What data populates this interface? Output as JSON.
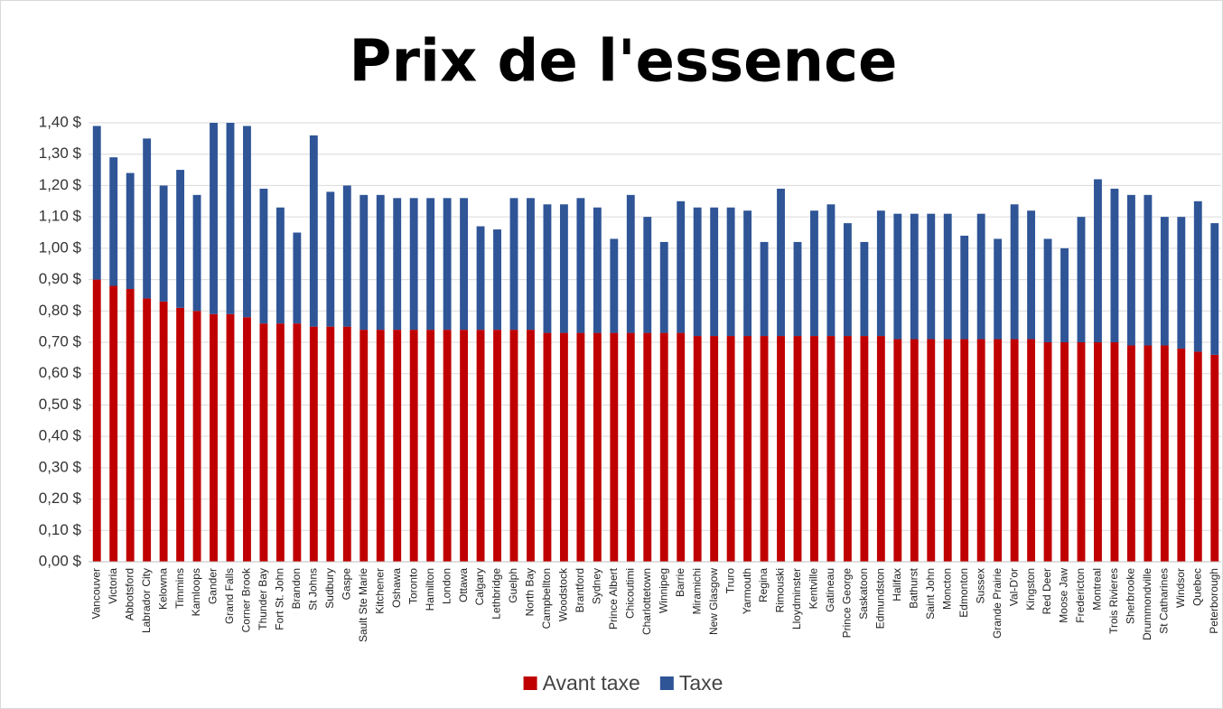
{
  "chart_data": {
    "type": "stacked_bar",
    "title": "Prix de l'essence",
    "categories": [
      "Vancouver",
      "Victoria",
      "Abbotsford",
      "Labrador City",
      "Kelowna",
      "Timmins",
      "Kamloops",
      "Gander",
      "Grand Falls",
      "Corner Brook",
      "Thunder Bay",
      "Fort St. John",
      "Brandon",
      "St Johns",
      "Sudbury",
      "Gaspe",
      "Sault Ste Marie",
      "Kitchener",
      "Oshawa",
      "Toronto",
      "Hamilton",
      "London",
      "Ottawa",
      "Calgary",
      "Lethbridge",
      "Guelph",
      "North Bay",
      "Campbellton",
      "Woodstock",
      "Brantford",
      "Sydney",
      "Prince Albert",
      "Chicoutimi",
      "Charlottetown",
      "Winnipeg",
      "Barrie",
      "Miramichi",
      "New Glasgow",
      "Truro",
      "Yarmouth",
      "Regina",
      "Rimouski",
      "Lloydminster",
      "Kentville",
      "Gatineau",
      "Prince George",
      "Saskatoon",
      "Edmundston",
      "Halifax",
      "Bathurst",
      "Saint John",
      "Moncton",
      "Edmonton",
      "Sussex",
      "Grande Prairie",
      "Val-D'or",
      "Kingston",
      "Red Deer",
      "Moose Jaw",
      "Fredericton",
      "Montreal",
      "Trois Rivieres",
      "Sherbrooke",
      "Drummondville",
      "St Catharines",
      "Windsor",
      "Quebec",
      "Peterborough"
    ],
    "series": [
      {
        "name": "Avant taxe",
        "color": "#c00000",
        "values": [
          0.9,
          0.88,
          0.87,
          0.84,
          0.83,
          0.81,
          0.8,
          0.79,
          0.79,
          0.78,
          0.76,
          0.76,
          0.76,
          0.75,
          0.75,
          0.75,
          0.74,
          0.74,
          0.74,
          0.74,
          0.74,
          0.74,
          0.74,
          0.74,
          0.74,
          0.74,
          0.74,
          0.73,
          0.73,
          0.73,
          0.73,
          0.73,
          0.73,
          0.73,
          0.73,
          0.73,
          0.72,
          0.72,
          0.72,
          0.72,
          0.72,
          0.72,
          0.72,
          0.72,
          0.72,
          0.72,
          0.72,
          0.72,
          0.71,
          0.71,
          0.71,
          0.71,
          0.71,
          0.71,
          0.71,
          0.71,
          0.71,
          0.7,
          0.7,
          0.7,
          0.7,
          0.7,
          0.69,
          0.69,
          0.69,
          0.68,
          0.67,
          0.66
        ]
      },
      {
        "name": "Taxe",
        "color": "#2f5597",
        "values": [
          0.49,
          0.41,
          0.37,
          0.51,
          0.37,
          0.44,
          0.37,
          0.61,
          0.61,
          0.61,
          0.43,
          0.37,
          0.29,
          0.61,
          0.43,
          0.45,
          0.43,
          0.43,
          0.42,
          0.42,
          0.42,
          0.42,
          0.42,
          0.33,
          0.32,
          0.42,
          0.42,
          0.41,
          0.41,
          0.43,
          0.4,
          0.3,
          0.44,
          0.37,
          0.29,
          0.42,
          0.41,
          0.41,
          0.41,
          0.4,
          0.3,
          0.47,
          0.3,
          0.4,
          0.42,
          0.36,
          0.3,
          0.4,
          0.4,
          0.4,
          0.4,
          0.4,
          0.33,
          0.4,
          0.32,
          0.43,
          0.41,
          0.33,
          0.3,
          0.4,
          0.52,
          0.49,
          0.48,
          0.48,
          0.41,
          0.42,
          0.48,
          0.42
        ]
      }
    ],
    "ylim": [
      0,
      1.4
    ],
    "yticks": [
      {
        "value": 0,
        "label": "0,00 $"
      },
      {
        "value": 0.1,
        "label": "0,10 $"
      },
      {
        "value": 0.2,
        "label": "0,20 $"
      },
      {
        "value": 0.3,
        "label": "0,30 $"
      },
      {
        "value": 0.4,
        "label": "0,40 $"
      },
      {
        "value": 0.5,
        "label": "0,50 $"
      },
      {
        "value": 0.6,
        "label": "0,60 $"
      },
      {
        "value": 0.7,
        "label": "0,70 $"
      },
      {
        "value": 0.8,
        "label": "0,80 $"
      },
      {
        "value": 0.9,
        "label": "0,90 $"
      },
      {
        "value": 1.0,
        "label": "1,00 $"
      },
      {
        "value": 1.1,
        "label": "1,10 $"
      },
      {
        "value": 1.2,
        "label": "1,20 $"
      },
      {
        "value": 1.3,
        "label": "1,30 $"
      },
      {
        "value": 1.4,
        "label": "1,40 $"
      }
    ],
    "grid": true,
    "legend": "bottom"
  }
}
